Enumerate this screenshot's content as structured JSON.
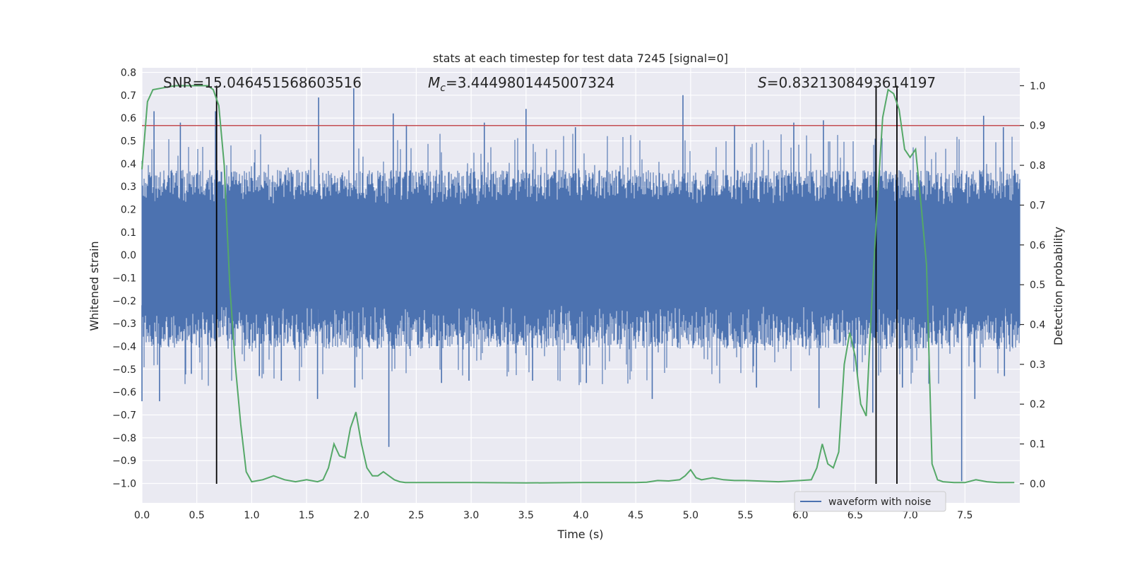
{
  "chart_data": {
    "type": "line",
    "title": "stats at each timestep for test data 7245 [signal=0]",
    "xlabel": "Time (s)",
    "ylabel": "Whitened strain",
    "y2label": "Detection probability",
    "xlim": [
      0.0,
      8.0
    ],
    "ylim": [
      -1.085,
      0.82
    ],
    "y2lim": [
      -0.048,
      1.045
    ],
    "xticks": [
      "0.0",
      "0.5",
      "1.0",
      "1.5",
      "2.0",
      "2.5",
      "3.0",
      "3.5",
      "4.0",
      "4.5",
      "5.0",
      "5.5",
      "6.0",
      "6.5",
      "7.0",
      "7.5"
    ],
    "yticks": [
      "0.8",
      "0.7",
      "0.6",
      "0.5",
      "0.4",
      "0.3",
      "0.2",
      "0.1",
      "0.0",
      "−0.1",
      "−0.2",
      "−0.3",
      "−0.4",
      "−0.5",
      "−0.6",
      "−0.7",
      "−0.8",
      "−0.9",
      "−1.0"
    ],
    "y2ticks": [
      "1.0",
      "0.9",
      "0.8",
      "0.7",
      "0.6",
      "0.5",
      "0.4",
      "0.3",
      "0.2",
      "0.1",
      "0.0"
    ],
    "grid": true,
    "legend": {
      "position": "bottom-right",
      "entries": [
        "waveform with noise"
      ]
    },
    "annotations": {
      "snr_label": "SNR=15.046451568603516",
      "mc_label_main": "M",
      "mc_label_sub": "c",
      "mc_label_value": "=3.4449801445007324",
      "s_label_main": "S",
      "s_label_value": "=0.8321308493614197"
    },
    "threshold": {
      "y2": 0.9,
      "color": "#c44e52"
    },
    "vertical_lines": [
      0.68,
      6.69,
      6.88
    ],
    "series": [
      {
        "name": "waveform with noise",
        "color": "#4c72b0",
        "axis": "left",
        "envelope": {
          "core_upper": 0.22,
          "core_lower": -0.22,
          "typical_upper": 0.38,
          "typical_lower": -0.42
        },
        "spikes": [
          [
            0.0,
            -0.64
          ],
          [
            0.11,
            0.63
          ],
          [
            0.16,
            -0.64
          ],
          [
            0.35,
            0.58
          ],
          [
            0.45,
            -0.52
          ],
          [
            0.67,
            0.63
          ],
          [
            1.07,
            -0.53
          ],
          [
            1.27,
            -0.55
          ],
          [
            1.6,
            -0.63
          ],
          [
            1.61,
            0.69
          ],
          [
            1.93,
            0.73
          ],
          [
            1.94,
            -0.58
          ],
          [
            2.25,
            -0.84
          ],
          [
            2.29,
            0.62
          ],
          [
            2.41,
            0.57
          ],
          [
            2.73,
            -0.56
          ],
          [
            2.98,
            -0.55
          ],
          [
            3.12,
            0.58
          ],
          [
            3.5,
            0.64
          ],
          [
            3.56,
            -0.55
          ],
          [
            3.95,
            0.56
          ],
          [
            4.05,
            -0.56
          ],
          [
            4.65,
            -0.63
          ],
          [
            4.93,
            0.7
          ],
          [
            5.4,
            0.57
          ],
          [
            5.6,
            -0.58
          ],
          [
            5.94,
            0.58
          ],
          [
            6.17,
            -0.67
          ],
          [
            6.21,
            0.59
          ],
          [
            6.52,
            -0.53
          ],
          [
            6.66,
            -0.69
          ],
          [
            6.93,
            -0.58
          ],
          [
            7.47,
            -0.99
          ],
          [
            7.59,
            -0.63
          ],
          [
            7.67,
            0.61
          ],
          [
            7.85,
            0.56
          ],
          [
            7.86,
            -0.53
          ]
        ]
      },
      {
        "name": "detection probability",
        "color": "#55a868",
        "axis": "right",
        "x": [
          0.0,
          0.05,
          0.1,
          0.2,
          0.3,
          0.4,
          0.5,
          0.6,
          0.65,
          0.7,
          0.75,
          0.8,
          0.85,
          0.9,
          0.95,
          1.0,
          1.1,
          1.2,
          1.3,
          1.4,
          1.5,
          1.6,
          1.65,
          1.7,
          1.75,
          1.8,
          1.85,
          1.9,
          1.95,
          2.0,
          2.05,
          2.1,
          2.15,
          2.2,
          2.25,
          2.3,
          2.35,
          2.4,
          2.5,
          2.6,
          2.8,
          3.0,
          3.5,
          4.0,
          4.5,
          4.6,
          4.7,
          4.8,
          4.9,
          4.95,
          5.0,
          5.05,
          5.1,
          5.2,
          5.3,
          5.4,
          5.5,
          5.8,
          6.0,
          6.1,
          6.15,
          6.2,
          6.25,
          6.3,
          6.35,
          6.4,
          6.45,
          6.5,
          6.55,
          6.6,
          6.65,
          6.7,
          6.75,
          6.8,
          6.85,
          6.9,
          6.95,
          7.0,
          7.05,
          7.1,
          7.15,
          7.2,
          7.25,
          7.3,
          7.4,
          7.5,
          7.6,
          7.7,
          7.8,
          7.95
        ],
        "y": [
          0.79,
          0.96,
          0.99,
          0.995,
          1.0,
          1.0,
          1.0,
          1.0,
          0.99,
          0.95,
          0.8,
          0.5,
          0.3,
          0.15,
          0.03,
          0.005,
          0.01,
          0.02,
          0.01,
          0.005,
          0.01,
          0.005,
          0.01,
          0.04,
          0.1,
          0.07,
          0.065,
          0.14,
          0.18,
          0.1,
          0.04,
          0.02,
          0.02,
          0.03,
          0.02,
          0.01,
          0.005,
          0.003,
          0.003,
          0.003,
          0.003,
          0.003,
          0.002,
          0.003,
          0.003,
          0.004,
          0.008,
          0.007,
          0.01,
          0.02,
          0.035,
          0.015,
          0.01,
          0.015,
          0.01,
          0.008,
          0.008,
          0.005,
          0.008,
          0.01,
          0.04,
          0.1,
          0.05,
          0.04,
          0.08,
          0.3,
          0.38,
          0.32,
          0.2,
          0.17,
          0.45,
          0.7,
          0.92,
          0.99,
          0.98,
          0.94,
          0.84,
          0.82,
          0.84,
          0.7,
          0.55,
          0.05,
          0.01,
          0.005,
          0.003,
          0.003,
          0.01,
          0.005,
          0.003,
          0.003
        ]
      }
    ]
  }
}
